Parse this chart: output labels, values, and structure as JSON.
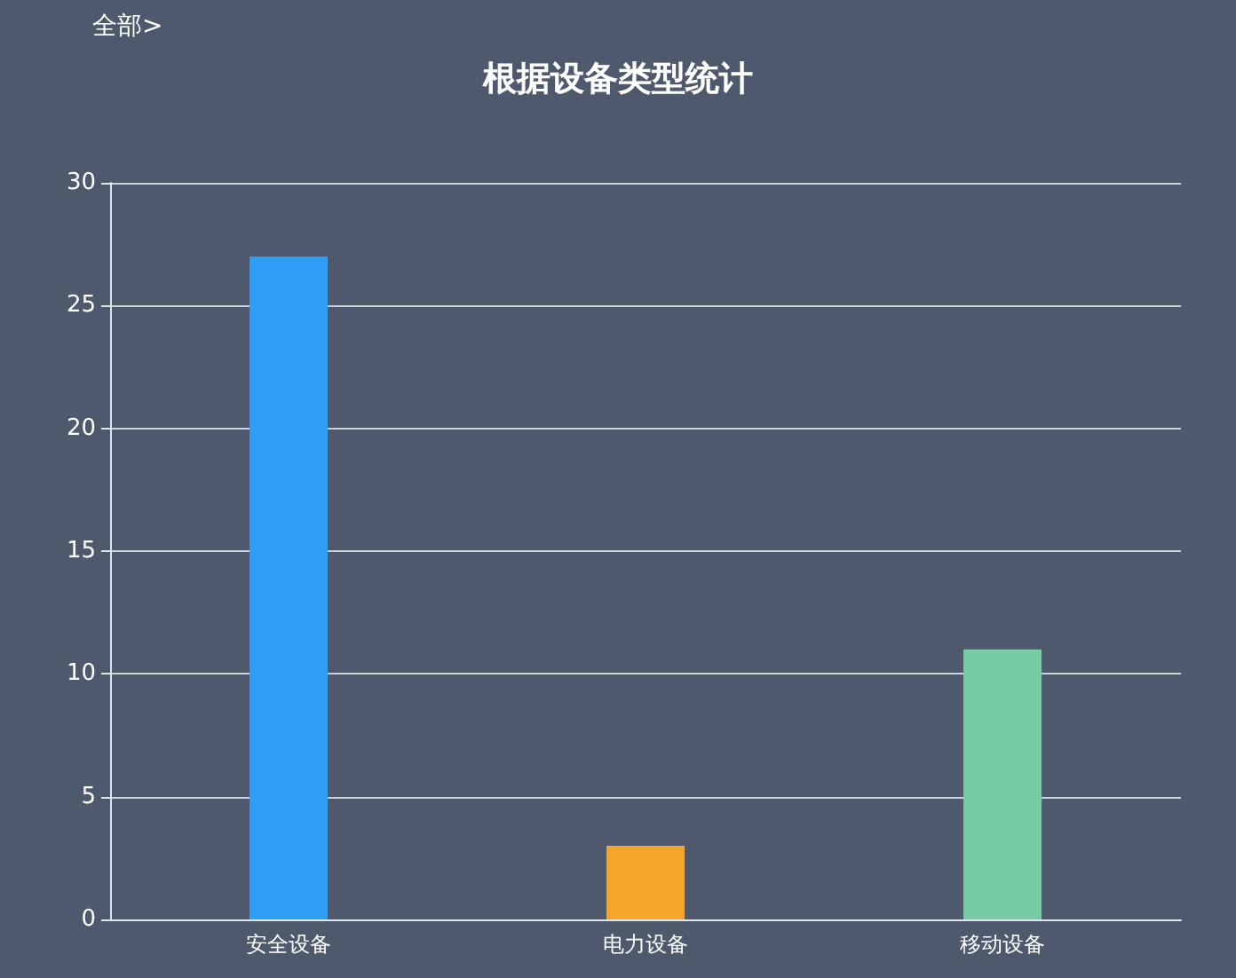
{
  "chart_data": {
    "type": "bar",
    "title": "根据设备类型统计",
    "annotations": [
      "全部>"
    ],
    "categories": [
      "安全设备",
      "电力设备",
      "移动设备"
    ],
    "values": [
      27,
      3,
      11
    ],
    "colors": [
      "#2f9ff6",
      "#f5a52a",
      "#77cba5"
    ],
    "ylim": [
      0,
      30
    ],
    "yticks": [
      0,
      5,
      10,
      15,
      20,
      25,
      30
    ],
    "grid": "y"
  }
}
